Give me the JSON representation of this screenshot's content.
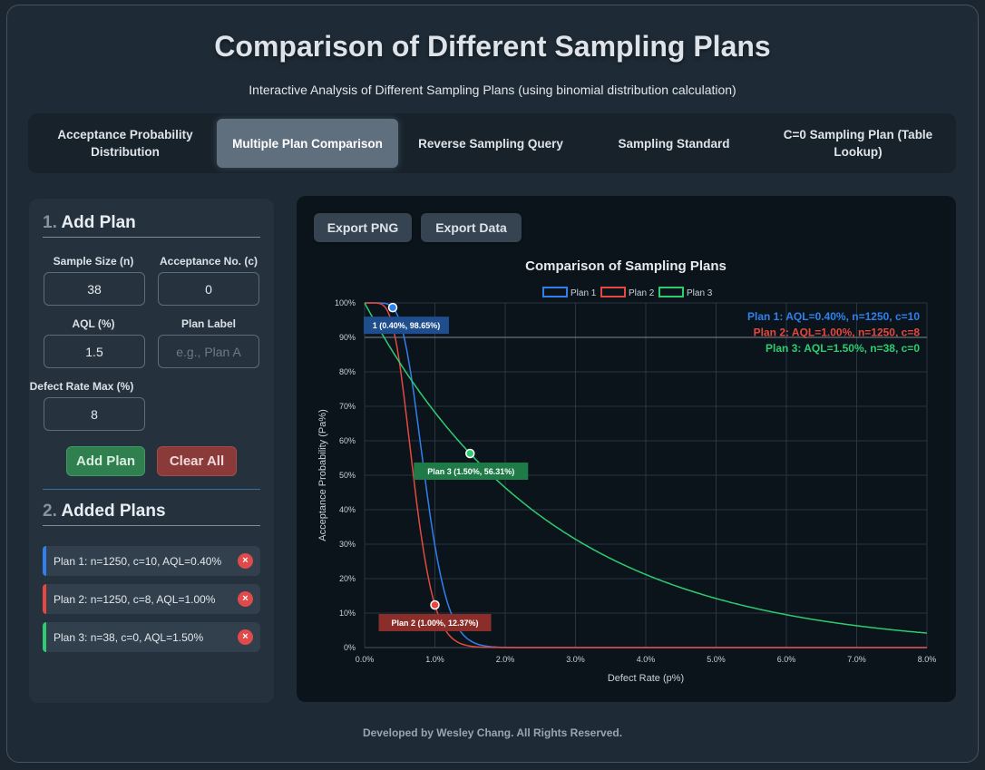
{
  "header": {
    "title": "Comparison of Different Sampling Plans",
    "subtitle": "Interactive Analysis of Different Sampling Plans (using binomial distribution calculation)"
  },
  "tabs": [
    {
      "label": "Acceptance Probability Distribution",
      "active": false
    },
    {
      "label": "Multiple Plan Comparison",
      "active": true
    },
    {
      "label": "Reverse Sampling Query",
      "active": false
    },
    {
      "label": "Sampling Standard",
      "active": false
    },
    {
      "label": "C=0 Sampling Plan (Table Lookup)",
      "active": false
    }
  ],
  "add_plan": {
    "num": "1.",
    "heading": "Add Plan",
    "sample_size_label": "Sample Size (n)",
    "sample_size_value": "38",
    "acceptance_label": "Acceptance No. (c)",
    "acceptance_value": "0",
    "aql_label": "AQL (%)",
    "aql_value": "1.5",
    "plan_label_label": "Plan Label",
    "plan_label_placeholder": "e.g., Plan A",
    "defect_max_label": "Defect Rate Max (%)",
    "defect_max_value": "8",
    "add_button": "Add Plan",
    "clear_button": "Clear All"
  },
  "added_plans": {
    "num": "2.",
    "heading": "Added Plans",
    "items": [
      {
        "label": "Plan 1: n=1250, c=10, AQL=0.40%",
        "color": "#2f80ed",
        "remove_icon": "×"
      },
      {
        "label": "Plan 2: n=1250, c=8, AQL=1.00%",
        "color": "#e5483e",
        "remove_icon": "×"
      },
      {
        "label": "Plan 3: n=38, c=0, AQL=1.50%",
        "color": "#2ecc71",
        "remove_icon": "×"
      }
    ]
  },
  "export": {
    "png": "Export PNG",
    "data": "Export Data"
  },
  "chart_data": {
    "type": "line",
    "title": "Comparison of Sampling Plans",
    "xlabel": "Defect Rate (p%)",
    "ylabel": "Acceptance Probability (Pa%)",
    "xlim": [
      0,
      8
    ],
    "ylim": [
      0,
      100
    ],
    "x_ticks": [
      "0.0%",
      "1.0%",
      "2.0%",
      "3.0%",
      "4.0%",
      "5.0%",
      "6.0%",
      "7.0%",
      "8.0%"
    ],
    "y_ticks": [
      "0%",
      "10%",
      "20%",
      "30%",
      "40%",
      "50%",
      "60%",
      "70%",
      "80%",
      "90%",
      "100%"
    ],
    "grid": true,
    "legend_position": "top-center",
    "series": [
      {
        "name": "Plan 1",
        "n": 1250,
        "c": 10,
        "color": "#2f80ed"
      },
      {
        "name": "Plan 2",
        "n": 1250,
        "c": 8,
        "color": "#e5483e"
      },
      {
        "name": "Plan 3",
        "n": 38,
        "c": 0,
        "color": "#2ecc71"
      }
    ],
    "highlight_points": [
      {
        "series": "Plan 1",
        "x": 0.4,
        "y": 98.65,
        "label": "1 (0.40%, 98.65%)",
        "fill": "#1f4e8f"
      },
      {
        "series": "Plan 2",
        "x": 1.0,
        "y": 12.37,
        "label": "Plan 2 (1.00%, 12.37%)",
        "fill": "#8b2e2a"
      },
      {
        "series": "Plan 3",
        "x": 1.5,
        "y": 56.31,
        "label": "Plan 3 (1.50%, 56.31%)",
        "fill": "#1e7a47"
      }
    ],
    "reference_line_y": 90,
    "annotations": [
      {
        "text": "Plan 1: AQL=0.40%, n=1250, c=10",
        "color": "#2f80ed"
      },
      {
        "text": "Plan 2: AQL=1.00%, n=1250, c=8",
        "color": "#e5483e"
      },
      {
        "text": "Plan 3: AQL=1.50%, n=38, c=0",
        "color": "#2ecc71"
      }
    ]
  },
  "footer": "Developed by Wesley Chang. All Rights Reserved."
}
